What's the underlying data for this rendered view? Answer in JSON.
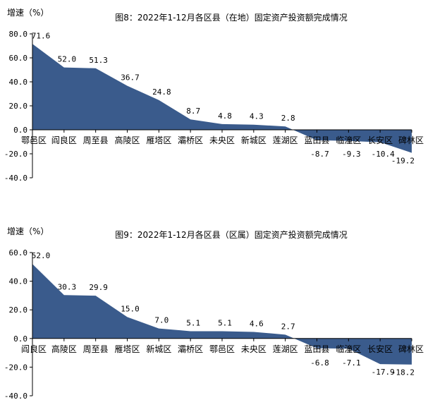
{
  "chart_data": [
    {
      "type": "area",
      "title": "图8：2022年1-12月各区县（在地）固定资产投资额完成情况",
      "ylabel": "增速（%）",
      "xlabel": "",
      "ylim": [
        -40,
        80
      ],
      "yticks": [
        "80.0",
        "60.0",
        "40.0",
        "20.0",
        "0.0",
        "-20.0",
        "-40.0"
      ],
      "grid": false,
      "color": "#3a5b8c",
      "categories": [
        "鄠邑区",
        "阎良区",
        "周至县",
        "高陵区",
        "雁塔区",
        "灞桥区",
        "未央区",
        "新城区",
        "莲湖区",
        "蓝田县",
        "临潼区",
        "长安区",
        "碑林区"
      ],
      "values": [
        71.6,
        52.0,
        51.3,
        36.7,
        24.8,
        8.7,
        4.8,
        4.3,
        2.8,
        -8.7,
        -9.3,
        -10.4,
        -19.2
      ],
      "value_labels": [
        "71.6",
        "52.0",
        "51.3",
        "36.7",
        "24.8",
        "8.7",
        "4.8",
        "4.3",
        "2.8",
        "-8.7",
        "-9.3",
        "-10.4",
        "-19.2"
      ]
    },
    {
      "type": "area",
      "title": "图9：2022年1-12月各区县（区属）固定资产投资额完成情况",
      "ylabel": "增速（%）",
      "xlabel": "",
      "ylim": [
        -40,
        60
      ],
      "yticks": [
        "60.0",
        "40.0",
        "20.0",
        "0.0",
        "-20.0",
        "-40.0"
      ],
      "grid": false,
      "color": "#3a5b8c",
      "categories": [
        "阎良区",
        "高陵区",
        "周至县",
        "雁塔区",
        "新城区",
        "灞桥区",
        "鄠邑区",
        "未央区",
        "莲湖区",
        "蓝田县",
        "临潼区",
        "长安区",
        "碑林区"
      ],
      "values": [
        52.0,
        30.3,
        29.9,
        15.0,
        7.0,
        5.1,
        5.1,
        4.6,
        2.7,
        -6.8,
        -7.1,
        -17.9,
        -18.2
      ],
      "value_labels": [
        "52.0",
        "30.3",
        "29.9",
        "15.0",
        "7.0",
        "5.1",
        "5.1",
        "4.6",
        "2.7",
        "-6.8",
        "-7.1",
        "-17.9",
        "-18.2"
      ]
    }
  ]
}
